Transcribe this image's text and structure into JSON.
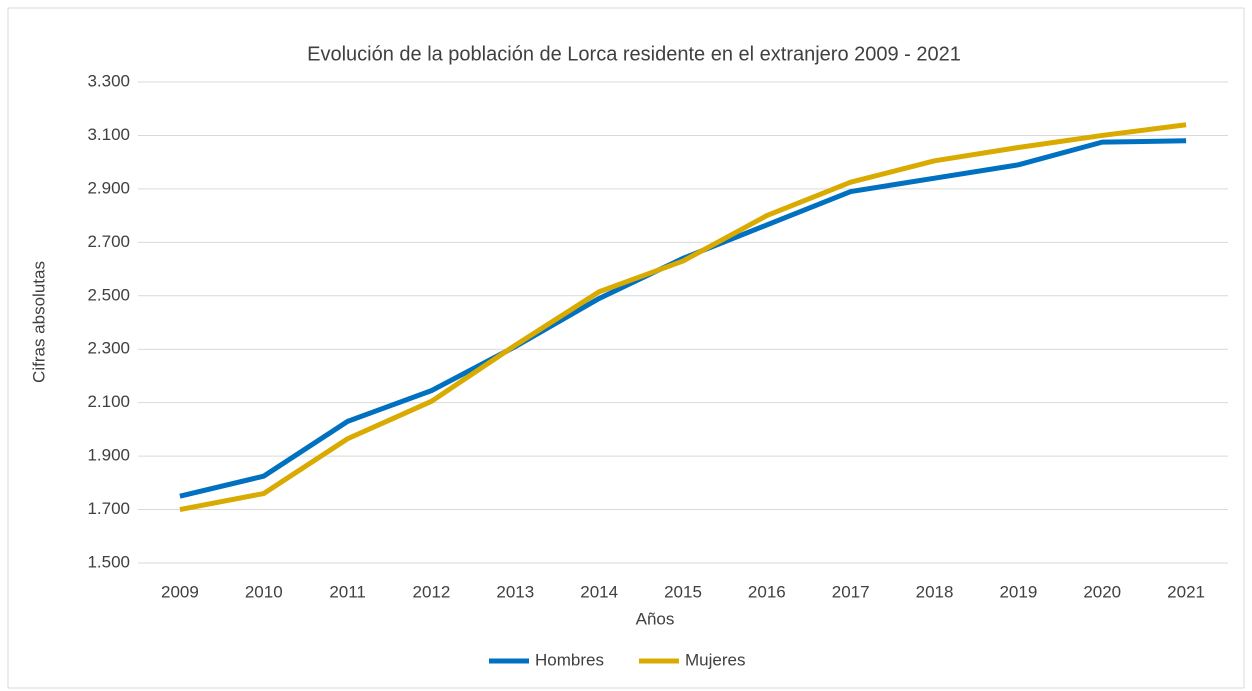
{
  "chart_data": {
    "type": "line",
    "title": "Evolución de la población de Lorca residente en el extranjero 2009 - 2021",
    "x_label": "Años",
    "y_label": "Cifras absolutas",
    "categories": [
      "2009",
      "2010",
      "2011",
      "2012",
      "2013",
      "2014",
      "2015",
      "2016",
      "2017",
      "2018",
      "2019",
      "2020",
      "2021"
    ],
    "series": [
      {
        "name": "Hombres",
        "color": "#0070c0",
        "values": [
          1750,
          1825,
          2030,
          2145,
          2310,
          2490,
          2640,
          2765,
          2890,
          2940,
          2990,
          3075,
          3080
        ]
      },
      {
        "name": "Mujeres",
        "color": "#d9aa00",
        "values": [
          1700,
          1760,
          1965,
          2105,
          2315,
          2515,
          2630,
          2800,
          2925,
          3005,
          3055,
          3100,
          3140
        ]
      }
    ],
    "ylim": [
      1500,
      3300
    ],
    "yticks": [
      {
        "value": 1500,
        "label": "1.500"
      },
      {
        "value": 1700,
        "label": "1.700"
      },
      {
        "value": 1900,
        "label": "1.900"
      },
      {
        "value": 2100,
        "label": "2.100"
      },
      {
        "value": 2300,
        "label": "2.300"
      },
      {
        "value": 2500,
        "label": "2.500"
      },
      {
        "value": 2700,
        "label": "2.700"
      },
      {
        "value": 2900,
        "label": "2.900"
      },
      {
        "value": 3100,
        "label": "3.100"
      },
      {
        "value": 3300,
        "label": "3.300"
      }
    ],
    "grid": true,
    "legend": "bottom"
  }
}
